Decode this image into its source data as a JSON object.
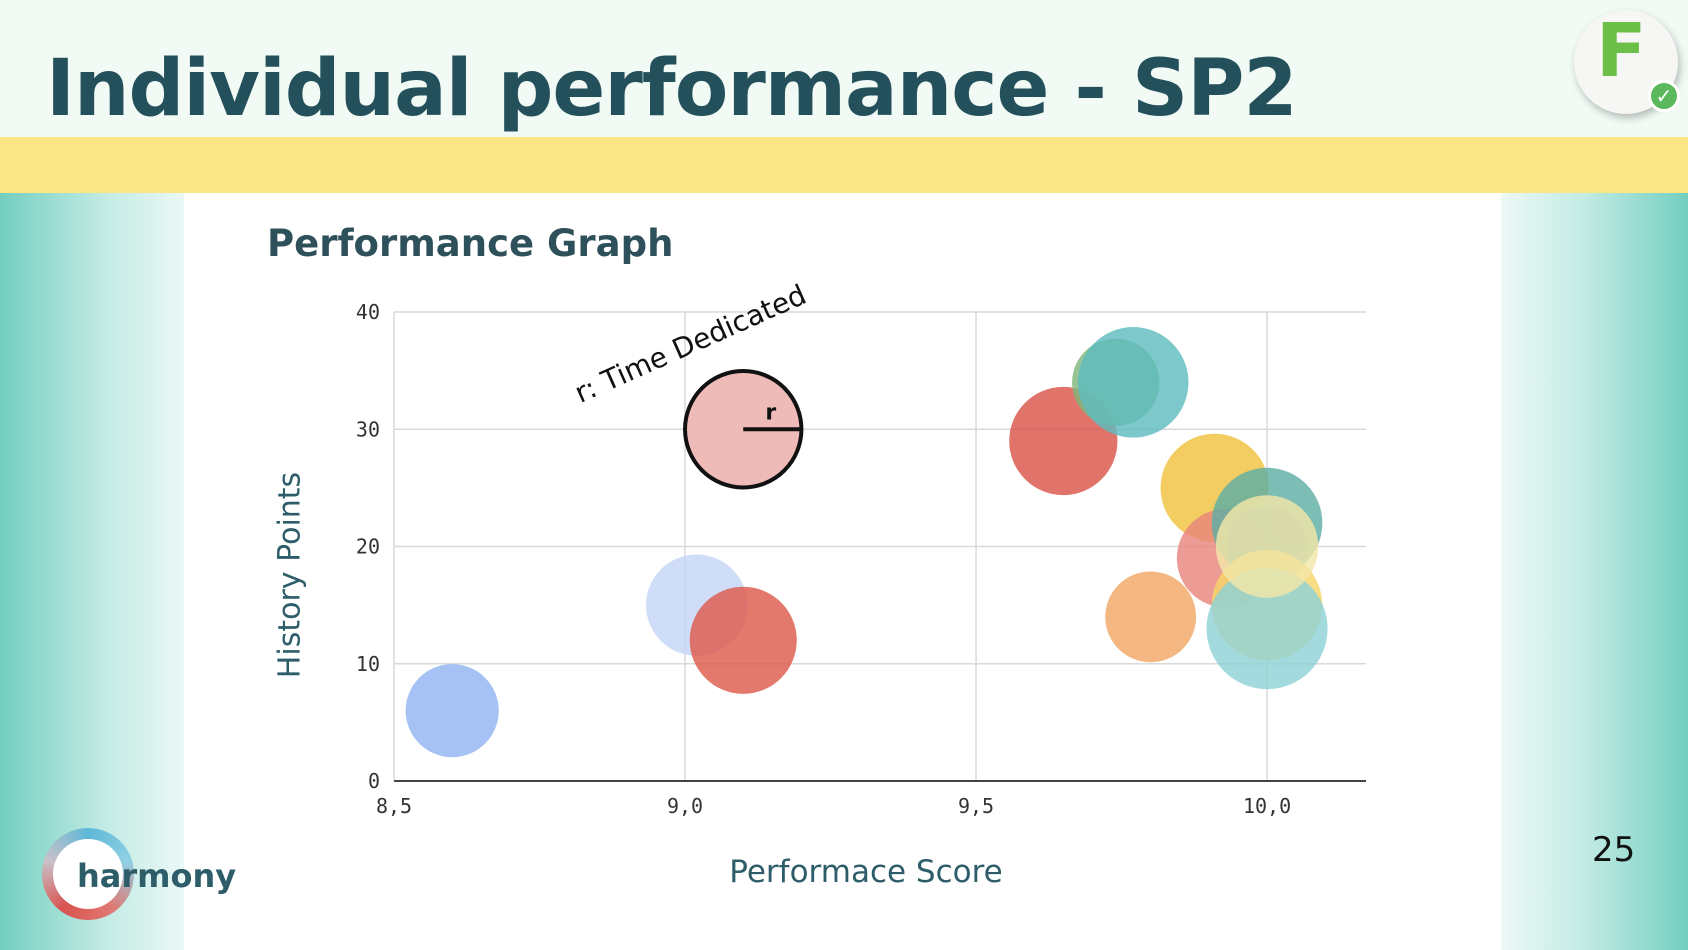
{
  "slide": {
    "title": "Individual performance - SP2",
    "subtitle": "Performance Graph",
    "page_number": "25",
    "logo_text": "harmony",
    "badge_letter": "F",
    "badge_icon": "check-icon"
  },
  "colors": {
    "title": "#24505b",
    "band": "#fae685",
    "teal": "#72cfc0",
    "axis_text": "#2e5d6a"
  },
  "chart_data": {
    "type": "scatter",
    "variant": "bubble",
    "xlabel": "Performace Score",
    "ylabel": "History Points",
    "xlim": [
      8.5,
      10.17
    ],
    "ylim": [
      0,
      40
    ],
    "x_ticks": [
      8.5,
      9.0,
      9.5,
      10.0
    ],
    "x_tick_labels": [
      "8,5",
      "9,0",
      "9,5",
      "10,0"
    ],
    "y_ticks": [
      0,
      10,
      20,
      30,
      40
    ],
    "y_tick_labels": [
      "0",
      "10",
      "20",
      "30",
      "40"
    ],
    "grid": true,
    "legend": {
      "label": "r: Time Dedicated",
      "radius_label": "r",
      "x": 9.1,
      "y": 30,
      "r": 0.1,
      "color": "#eebbb8"
    },
    "points": [
      {
        "x": 8.6,
        "y": 6,
        "r": 0.08,
        "color": "#93b4f1"
      },
      {
        "x": 9.02,
        "y": 15,
        "r": 0.087,
        "color": "#c4d6f7"
      },
      {
        "x": 9.1,
        "y": 12,
        "r": 0.092,
        "color": "#dd5a4c"
      },
      {
        "x": 9.65,
        "y": 29,
        "r": 0.093,
        "color": "#d9554a"
      },
      {
        "x": 9.74,
        "y": 34,
        "r": 0.075,
        "color": "#7fb77a"
      },
      {
        "x": 9.77,
        "y": 34,
        "r": 0.095,
        "color": "#5fbcc0"
      },
      {
        "x": 9.8,
        "y": 14,
        "r": 0.078,
        "color": "#f2a766"
      },
      {
        "x": 9.91,
        "y": 25,
        "r": 0.093,
        "color": "#f2c240"
      },
      {
        "x": 9.93,
        "y": 19,
        "r": 0.085,
        "color": "#e8867c"
      },
      {
        "x": 10.0,
        "y": 20,
        "r": 0.07,
        "color": "#5588dd"
      },
      {
        "x": 10.0,
        "y": 22,
        "r": 0.095,
        "color": "#5fafa5"
      },
      {
        "x": 10.0,
        "y": 15,
        "r": 0.095,
        "color": "#f7d56a"
      },
      {
        "x": 10.0,
        "y": 13,
        "r": 0.104,
        "color": "#8fd2d6"
      },
      {
        "x": 10.0,
        "y": 20,
        "r": 0.088,
        "color": "#f3e6a8"
      }
    ]
  }
}
